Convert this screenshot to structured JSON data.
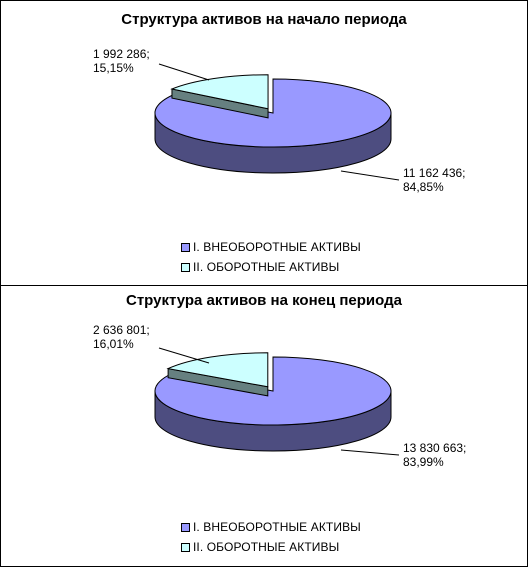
{
  "colors": {
    "noncurrent_top": "#9999ff",
    "noncurrent_side": "#4d4d80",
    "current_top": "#ccffff",
    "current_side": "#668080",
    "outline": "#000000"
  },
  "chart_data": [
    {
      "type": "pie",
      "title": "Структура активов на начало периода",
      "categories": [
        "I. ВНЕОБОРОТНЫЕ АКТИВЫ",
        "II. ОБОРОТНЫЕ АКТИВЫ"
      ],
      "values": [
        11162436,
        1992286
      ],
      "labels": [
        {
          "value_text": "11 162 436;",
          "percent_text": "84,85%"
        },
        {
          "value_text": "1 992 286;",
          "percent_text": "15,15%"
        }
      ],
      "legend": {
        "placement": "bottom",
        "entries": [
          "I. ВНЕОБОРОТНЫЕ АКТИВЫ",
          "II. ОБОРОТНЫЕ АКТИВЫ"
        ]
      }
    },
    {
      "type": "pie",
      "title": "Структура активов на конец периода",
      "categories": [
        "I. ВНЕОБОРОТНЫЕ АКТИВЫ",
        "II. ОБОРОТНЫЕ АКТИВЫ"
      ],
      "values": [
        13830663,
        2636801
      ],
      "labels": [
        {
          "value_text": "13 830 663;",
          "percent_text": "83,99%"
        },
        {
          "value_text": "2 636 801;",
          "percent_text": "16,01%"
        }
      ],
      "legend": {
        "placement": "bottom",
        "entries": [
          "I. ВНЕОБОРОТНЫЕ АКТИВЫ",
          "II. ОБОРОТНЫЕ АКТИВЫ"
        ]
      }
    }
  ]
}
